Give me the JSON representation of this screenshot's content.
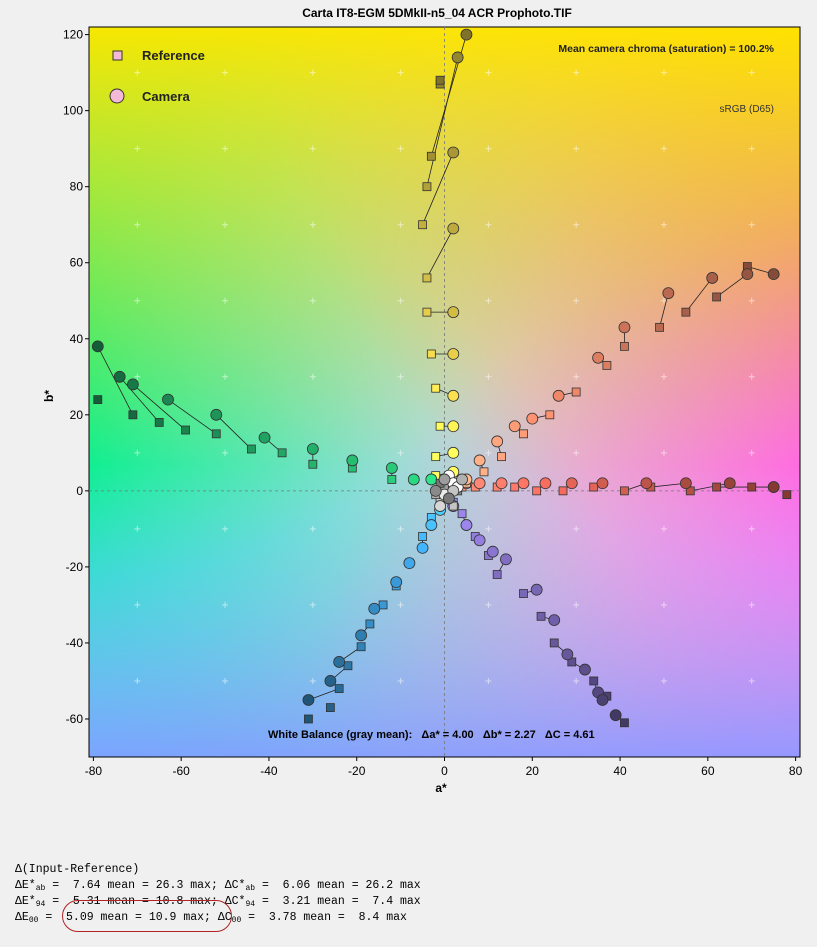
{
  "chart_data": {
    "type": "scatter",
    "title": "Carta IT8-EGM 5DMkII-n5_04 ACR Prophoto.TIF",
    "xlabel": "a*",
    "ylabel": "b*",
    "xlim": [
      -81,
      81
    ],
    "ylim": [
      -70,
      122
    ],
    "xticks": [
      -80,
      -60,
      -40,
      -20,
      0,
      20,
      40,
      60,
      80
    ],
    "yticks": [
      -60,
      -40,
      -20,
      0,
      20,
      40,
      60,
      80,
      100,
      120
    ],
    "xtick_labels": [
      "-80",
      "-60",
      "-40",
      "-20",
      "0",
      "20",
      "40",
      "60",
      "80"
    ],
    "ytick_labels": [
      "-60",
      "-40",
      "-20",
      "0",
      "20",
      "40",
      "60",
      "80",
      "100",
      "120"
    ],
    "grid": true,
    "legend_position": "top-left",
    "legend": [
      {
        "name": "Reference",
        "marker": "square"
      },
      {
        "name": "Camera",
        "marker": "circle"
      }
    ],
    "annotations": {
      "chroma": "Mean camera chroma (saturation) = 100.2%",
      "colorspace": "sRGB (D65)",
      "white_balance": "White Balance (gray mean):   Δa* = 4.00   Δb* = 2.27   ΔC = 4.61"
    },
    "series": [
      {
        "name": "yellow",
        "color": "#e8d04a",
        "reference": [
          [
            -2,
            4
          ],
          [
            -2,
            9
          ],
          [
            -1,
            17
          ],
          [
            -2,
            27
          ],
          [
            -3,
            36
          ],
          [
            -4,
            47
          ],
          [
            -4,
            56
          ],
          [
            -5,
            70
          ],
          [
            -4,
            80
          ],
          [
            -3,
            88
          ],
          [
            -1,
            107
          ],
          [
            -1,
            108
          ]
        ],
        "camera": [
          [
            2,
            5
          ],
          [
            2,
            10
          ],
          [
            2,
            17
          ],
          [
            2,
            25
          ],
          [
            2,
            36
          ],
          [
            2,
            47
          ],
          [
            2,
            69
          ],
          [
            2,
            89
          ],
          [
            3,
            114
          ],
          [
            5,
            120
          ]
        ]
      },
      {
        "name": "red",
        "color": "#f06a5c",
        "reference": [
          [
            4,
            1
          ],
          [
            7,
            1
          ],
          [
            12,
            1
          ],
          [
            16,
            1
          ],
          [
            21,
            0
          ],
          [
            27,
            0
          ],
          [
            34,
            1
          ],
          [
            41,
            0
          ],
          [
            47,
            1
          ],
          [
            56,
            0
          ],
          [
            62,
            1
          ],
          [
            70,
            1
          ],
          [
            78,
            -1
          ]
        ],
        "camera": [
          [
            5,
            2
          ],
          [
            8,
            2
          ],
          [
            13,
            2
          ],
          [
            18,
            2
          ],
          [
            23,
            2
          ],
          [
            29,
            2
          ],
          [
            36,
            2
          ],
          [
            46,
            2
          ],
          [
            55,
            2
          ],
          [
            65,
            2
          ],
          [
            75,
            1
          ]
        ]
      },
      {
        "name": "orange",
        "color": "#f28a6a",
        "reference": [
          [
            5,
            2
          ],
          [
            9,
            5
          ],
          [
            13,
            9
          ],
          [
            18,
            15
          ],
          [
            24,
            20
          ],
          [
            30,
            26
          ],
          [
            37,
            33
          ],
          [
            41,
            38
          ],
          [
            49,
            43
          ],
          [
            55,
            47
          ],
          [
            62,
            51
          ],
          [
            69,
            59
          ]
        ],
        "camera": [
          [
            5,
            3
          ],
          [
            8,
            8
          ],
          [
            12,
            13
          ],
          [
            16,
            17
          ],
          [
            20,
            19
          ],
          [
            26,
            25
          ],
          [
            35,
            35
          ],
          [
            41,
            43
          ],
          [
            51,
            52
          ],
          [
            61,
            56
          ],
          [
            69,
            57
          ],
          [
            75,
            57
          ]
        ]
      },
      {
        "name": "green",
        "color": "#22aa66",
        "reference": [
          [
            -3,
            3
          ],
          [
            -7,
            3
          ],
          [
            -12,
            3
          ],
          [
            -21,
            6
          ],
          [
            -30,
            7
          ],
          [
            -37,
            10
          ],
          [
            -44,
            11
          ],
          [
            -52,
            15
          ],
          [
            -59,
            16
          ],
          [
            -65,
            18
          ],
          [
            -71,
            20
          ],
          [
            -79,
            24
          ]
        ],
        "camera": [
          [
            -3,
            3
          ],
          [
            -7,
            3
          ],
          [
            -12,
            6
          ],
          [
            -21,
            8
          ],
          [
            -30,
            11
          ],
          [
            -41,
            14
          ],
          [
            -52,
            20
          ],
          [
            -63,
            24
          ],
          [
            -71,
            28
          ],
          [
            -74,
            30
          ],
          [
            -79,
            38
          ]
        ]
      },
      {
        "name": "blue",
        "color": "#3a9ad8",
        "reference": [
          [
            -1,
            -3
          ],
          [
            -3,
            -7
          ],
          [
            -5,
            -12
          ],
          [
            -8,
            -19
          ],
          [
            -11,
            -25
          ],
          [
            -14,
            -30
          ],
          [
            -17,
            -35
          ],
          [
            -19,
            -41
          ],
          [
            -22,
            -46
          ],
          [
            -24,
            -52
          ],
          [
            -26,
            -57
          ],
          [
            -31,
            -60
          ]
        ],
        "camera": [
          [
            -1,
            -5
          ],
          [
            -3,
            -9
          ],
          [
            -5,
            -15
          ],
          [
            -8,
            -19
          ],
          [
            -11,
            -24
          ],
          [
            -16,
            -31
          ],
          [
            -19,
            -38
          ],
          [
            -24,
            -45
          ],
          [
            -26,
            -50
          ],
          [
            -31,
            -55
          ]
        ]
      },
      {
        "name": "purple",
        "color": "#7a68b8",
        "reference": [
          [
            2,
            -3
          ],
          [
            4,
            -6
          ],
          [
            7,
            -12
          ],
          [
            10,
            -17
          ],
          [
            12,
            -22
          ],
          [
            18,
            -27
          ],
          [
            22,
            -33
          ],
          [
            25,
            -40
          ],
          [
            29,
            -45
          ],
          [
            34,
            -50
          ],
          [
            37,
            -54
          ],
          [
            41,
            -61
          ]
        ],
        "camera": [
          [
            2,
            -4
          ],
          [
            5,
            -9
          ],
          [
            8,
            -13
          ],
          [
            11,
            -16
          ],
          [
            14,
            -18
          ],
          [
            21,
            -26
          ],
          [
            25,
            -34
          ],
          [
            28,
            -43
          ],
          [
            32,
            -47
          ],
          [
            35,
            -53
          ],
          [
            36,
            -55
          ],
          [
            39,
            -59
          ]
        ]
      },
      {
        "name": "neutral",
        "color": "#d8d8d8",
        "reference": [
          [
            1,
            3
          ],
          [
            2,
            1
          ],
          [
            1,
            -1
          ],
          [
            0,
            -2
          ],
          [
            -1,
            -3
          ],
          [
            2,
            -4
          ],
          [
            -2,
            -1
          ],
          [
            0,
            1
          ],
          [
            3,
            0
          ],
          [
            -1,
            2
          ]
        ],
        "camera": [
          [
            1,
            4
          ],
          [
            2,
            2
          ],
          [
            3,
            1
          ],
          [
            0,
            -1
          ],
          [
            -1,
            -4
          ],
          [
            2,
            0
          ],
          [
            4,
            3
          ],
          [
            0,
            3
          ],
          [
            -2,
            0
          ],
          [
            1,
            -2
          ]
        ]
      }
    ]
  },
  "stats": {
    "header": "Δ(Input-Reference)",
    "rows": [
      {
        "prefix": "ΔE*",
        "sub": "ab",
        "middle": " =  7.64 mean = 26.3 max; ΔC*",
        "sub2": "ab",
        "end": " =  6.06 mean = 26.2 max"
      },
      {
        "prefix": "ΔE*",
        "sub": "94",
        "middle": " =  5.31 mean = 10.8 max; ΔC*",
        "sub2": "94",
        "end": " =  3.21 mean =  7.4 max"
      },
      {
        "prefix": "ΔE",
        "sub": "00",
        "middle": " =  5.09 mean = 10.9 max; ΔC",
        "sub2": "00",
        "end": " =  3.78 mean =  8.4 max"
      }
    ]
  }
}
